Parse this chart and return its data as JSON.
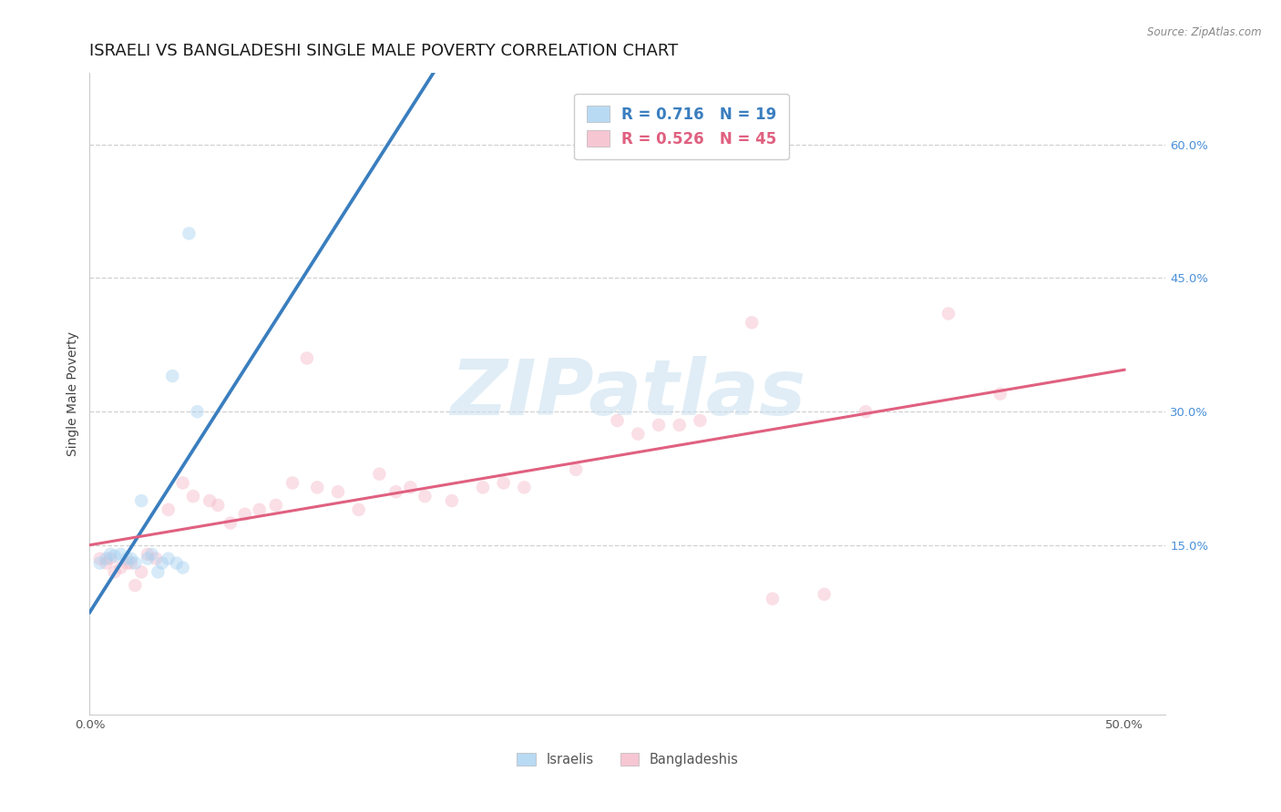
{
  "title": "ISRAELI VS BANGLADESHI SINGLE MALE POVERTY CORRELATION CHART",
  "source": "Source: ZipAtlas.com",
  "ylabel": "Single Male Poverty",
  "xlim": [
    0.0,
    0.52
  ],
  "ylim": [
    -0.04,
    0.68
  ],
  "x_tick_positions": [
    0.0,
    0.5
  ],
  "x_tick_labels": [
    "0.0%",
    "50.0%"
  ],
  "y_ticks_right": [
    0.15,
    0.3,
    0.45,
    0.6
  ],
  "y_tick_labels_right": [
    "15.0%",
    "30.0%",
    "45.0%",
    "60.0%"
  ],
  "watermark": "ZIPatlas",
  "israeli_color": "#a8d1f0",
  "bangladeshi_color": "#f4b8c8",
  "israeli_line_color": "#3a7ebf",
  "bangladeshi_line_color": "#e06080",
  "background_color": "#ffffff",
  "grid_color": "#d0d0d0",
  "israeli_x": [
    0.005,
    0.008,
    0.01,
    0.012,
    0.015,
    0.018,
    0.02,
    0.022,
    0.025,
    0.028,
    0.03,
    0.033,
    0.035,
    0.038,
    0.04,
    0.042,
    0.045,
    0.048,
    0.052
  ],
  "israeli_y": [
    0.13,
    0.135,
    0.14,
    0.138,
    0.14,
    0.135,
    0.135,
    0.13,
    0.2,
    0.135,
    0.14,
    0.12,
    0.13,
    0.135,
    0.34,
    0.13,
    0.125,
    0.5,
    0.3
  ],
  "bangladeshi_x": [
    0.005,
    0.008,
    0.01,
    0.012,
    0.015,
    0.018,
    0.02,
    0.022,
    0.025,
    0.028,
    0.032,
    0.038,
    0.045,
    0.05,
    0.058,
    0.062,
    0.068,
    0.075,
    0.082,
    0.09,
    0.098,
    0.105,
    0.11,
    0.12,
    0.13,
    0.14,
    0.148,
    0.155,
    0.162,
    0.175,
    0.19,
    0.2,
    0.21,
    0.235,
    0.255,
    0.265,
    0.275,
    0.285,
    0.295,
    0.32,
    0.33,
    0.355,
    0.375,
    0.415,
    0.44
  ],
  "bangladeshi_y": [
    0.135,
    0.13,
    0.135,
    0.12,
    0.125,
    0.13,
    0.13,
    0.105,
    0.12,
    0.14,
    0.135,
    0.19,
    0.22,
    0.205,
    0.2,
    0.195,
    0.175,
    0.185,
    0.19,
    0.195,
    0.22,
    0.36,
    0.215,
    0.21,
    0.19,
    0.23,
    0.21,
    0.215,
    0.205,
    0.2,
    0.215,
    0.22,
    0.215,
    0.235,
    0.29,
    0.275,
    0.285,
    0.285,
    0.29,
    0.4,
    0.09,
    0.095,
    0.3,
    0.41,
    0.32
  ],
  "marker_size": 110,
  "marker_alpha": 0.45,
  "line_width": 2.2,
  "title_fontsize": 13,
  "tick_fontsize": 9.5,
  "axis_label_fontsize": 10,
  "legend_fontsize": 12
}
